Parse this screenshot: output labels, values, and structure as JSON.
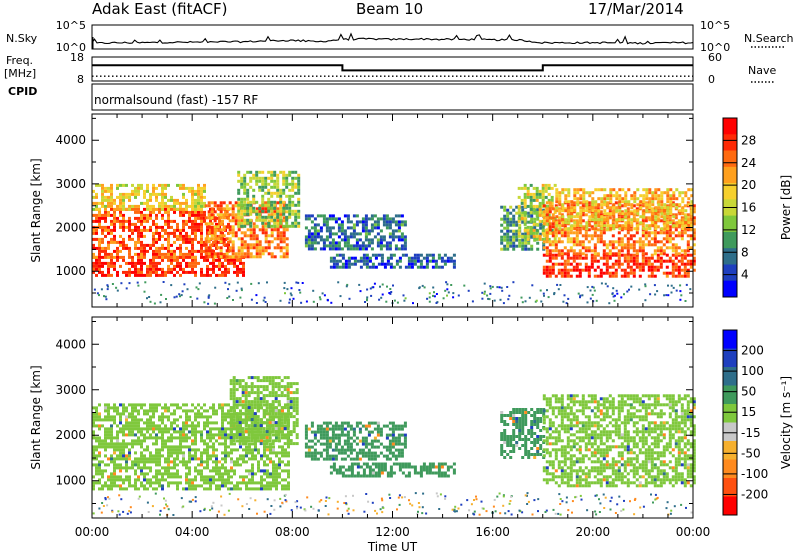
{
  "header": {
    "station": "Adak East (fitACF)",
    "beam": "Beam 10",
    "date": "17/Mar/2014"
  },
  "labels": {
    "nsky": "N.Sky",
    "nsearch": "N.Search",
    "freq_line1": "Freq.",
    "freq_line2": "[MHz]",
    "cpid": "CPID",
    "nave": "Nave",
    "cpid_text": "normalsound (fast) -157 RF"
  },
  "chart_data": [
    {
      "type": "line",
      "name": "noise",
      "left_axis_ticks": [
        "10^5",
        "10^0"
      ],
      "right_axis_ticks": [
        "10^5",
        "10^0"
      ],
      "left_series_label": "N.Sky",
      "right_series_label": "N.Search",
      "x_hours": [
        0,
        1,
        2,
        3,
        4,
        5,
        6,
        7,
        8,
        9,
        10,
        11,
        12,
        13,
        14,
        15,
        16,
        17,
        18,
        19,
        20,
        21,
        22,
        23,
        24
      ],
      "nsky_log10": [
        1.2,
        1.3,
        1.3,
        1.4,
        1.4,
        1.5,
        1.5,
        1.7,
        1.8,
        1.5,
        2.0,
        2.1,
        2.0,
        2.1,
        2.0,
        2.0,
        1.9,
        1.9,
        1.3,
        1.3,
        1.3,
        1.3,
        1.2,
        1.3,
        1.3
      ]
    },
    {
      "type": "line",
      "name": "frequency-nave",
      "left_axis_ticks": [
        "18",
        "8"
      ],
      "right_axis_ticks": [
        "60",
        "0"
      ],
      "left_axis_label": "Freq. [MHz]",
      "right_series_label": "Nave",
      "freq_steps": [
        {
          "from_hour": 0,
          "to_hour": 10,
          "mhz": 14.6
        },
        {
          "from_hour": 10,
          "to_hour": 18,
          "mhz": 12.4
        },
        {
          "from_hour": 18,
          "to_hour": 24,
          "mhz": 14.6
        }
      ],
      "nave": 12
    },
    {
      "type": "heatmap",
      "name": "power",
      "xlabel": "Time UT",
      "ylabel": "Slant Range [km]",
      "x_ticks": [
        "00:00",
        "04:00",
        "08:00",
        "12:00",
        "16:00",
        "20:00",
        "00:00"
      ],
      "xlim_hours": [
        0,
        24
      ],
      "y_ticks": [
        1000,
        2000,
        3000,
        4000
      ],
      "ylim_km": [
        180,
        4600
      ],
      "colorbar_label": "Power [dB]",
      "colorbar_ticks": [
        4,
        8,
        12,
        16,
        20,
        24,
        28
      ],
      "colorbar_range": [
        0,
        32
      ],
      "colors": [
        "#0000ff",
        "#1e3fbf",
        "#2e6e8a",
        "#3f9a5c",
        "#7fc83c",
        "#c8d838",
        "#f6d02e",
        "#ffa01e",
        "#ff6a10",
        "#ff2a06",
        "#ff0000"
      ],
      "regions": [
        {
          "h0": 0.0,
          "h1": 6.0,
          "r0": 900,
          "r1": 1350,
          "v": 28
        },
        {
          "h0": 0.0,
          "h1": 5.5,
          "r0": 1350,
          "r1": 2450,
          "v": 26
        },
        {
          "h0": 0.0,
          "h1": 4.5,
          "r0": 2450,
          "r1": 3000,
          "v": 18
        },
        {
          "h0": 4.5,
          "h1": 7.8,
          "r0": 1300,
          "r1": 2600,
          "v": 24
        },
        {
          "h0": 5.8,
          "h1": 8.2,
          "r0": 2000,
          "r1": 3300,
          "v": 14
        },
        {
          "h0": 8.5,
          "h1": 12.5,
          "r0": 1500,
          "r1": 2300,
          "v": 7
        },
        {
          "h0": 9.5,
          "h1": 14.5,
          "r0": 1100,
          "r1": 1400,
          "v": 6
        },
        {
          "h0": 16.3,
          "h1": 18.0,
          "r0": 1500,
          "r1": 2500,
          "v": 10
        },
        {
          "h0": 17.0,
          "h1": 18.5,
          "r0": 1700,
          "r1": 3000,
          "v": 16
        },
        {
          "h0": 18.0,
          "h1": 24.0,
          "r0": 900,
          "r1": 1400,
          "v": 28
        },
        {
          "h0": 18.0,
          "h1": 24.0,
          "r0": 1400,
          "r1": 2600,
          "v": 24
        },
        {
          "h0": 18.5,
          "h1": 24.0,
          "r0": 2000,
          "r1": 2900,
          "v": 20
        }
      ]
    },
    {
      "type": "heatmap",
      "name": "velocity",
      "xlabel": "Time UT",
      "ylabel": "Slant Range [km]",
      "x_ticks": [
        "00:00",
        "04:00",
        "08:00",
        "12:00",
        "16:00",
        "20:00",
        "00:00"
      ],
      "xlim_hours": [
        0,
        24
      ],
      "y_ticks": [
        1000,
        2000,
        3000,
        4000
      ],
      "ylim_km": [
        180,
        4600
      ],
      "colorbar_label": "Velocity [m s⁻¹]",
      "colorbar_ticks": [
        200,
        100,
        50,
        15,
        -15,
        -50,
        -100,
        -200
      ],
      "colors": [
        "#0000ff",
        "#1e3fbf",
        "#2e6e8a",
        "#3f9a5c",
        "#7fc83c",
        "#c8c8c8",
        "#f6b02e",
        "#ff8a1e",
        "#ff5010",
        "#ff0000"
      ],
      "regions": [
        {
          "h0": 0.0,
          "h1": 7.8,
          "r0": 850,
          "r1": 2700,
          "v": 0
        },
        {
          "h0": 5.5,
          "h1": 8.2,
          "r0": 1800,
          "r1": 3300,
          "v": 0
        },
        {
          "h0": 8.5,
          "h1": 12.5,
          "r0": 1500,
          "r1": 2300,
          "v": 30
        },
        {
          "h0": 9.5,
          "h1": 14.5,
          "r0": 1100,
          "r1": 1400,
          "v": 30
        },
        {
          "h0": 16.3,
          "h1": 18.0,
          "r0": 1500,
          "r1": 2600,
          "v": 40
        },
        {
          "h0": 18.0,
          "h1": 24.0,
          "r0": 900,
          "r1": 2900,
          "v": 0
        }
      ]
    }
  ]
}
